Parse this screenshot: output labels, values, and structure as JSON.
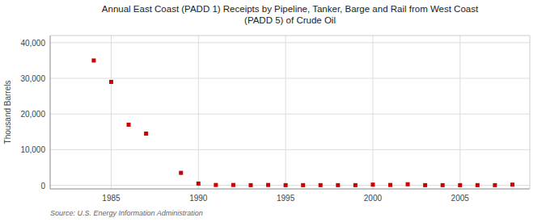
{
  "chart_data": {
    "type": "scatter",
    "title": "Annual East Coast (PADD 1) Receipts by Pipeline, Tanker, Barge and Rail from West Coast\n(PADD 5) of Crude Oil",
    "ylabel": "Thousand Barrels",
    "source": "Source: U.S. Energy Information Administration",
    "x": [
      1984,
      1985,
      1986,
      1987,
      1989,
      1990,
      1991,
      1992,
      1993,
      1994,
      1995,
      1996,
      1997,
      1998,
      1999,
      2000,
      2001,
      2002,
      2003,
      2004,
      2005,
      2006,
      2007,
      2008
    ],
    "values": [
      35000,
      29000,
      17000,
      14500,
      3500,
      500,
      100,
      100,
      50,
      100,
      50,
      50,
      50,
      50,
      50,
      200,
      100,
      300,
      50,
      50,
      50,
      50,
      50,
      200
    ],
    "color": "#cc0000",
    "marker": "square",
    "xlim": [
      1981.5,
      2009
    ],
    "ylim": [
      -1000,
      42000
    ],
    "xticks": [
      1985,
      1990,
      1995,
      2000,
      2005
    ],
    "yticks": [
      0,
      {
        "value": 10000,
        "label": "10,000"
      },
      {
        "value": 20000,
        "label": "20,000"
      },
      {
        "value": 30000,
        "label": "30,000"
      },
      {
        "value": 40000,
        "label": "40,000"
      }
    ],
    "grid": true
  }
}
